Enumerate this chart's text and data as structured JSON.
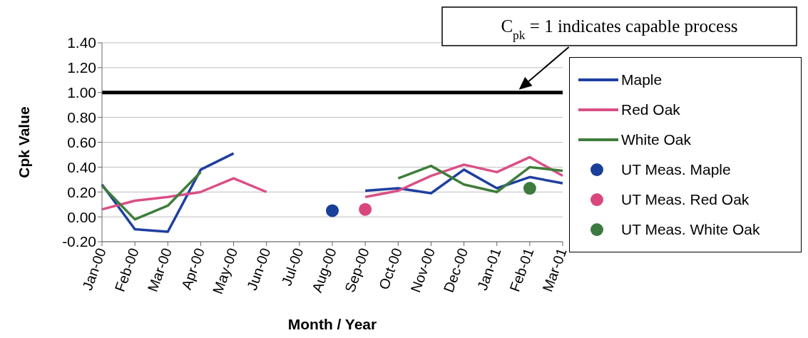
{
  "chart_data": {
    "type": "line",
    "xlabel": "Month / Year",
    "ylabel": "Cpk Value",
    "categories": [
      "Jan-00",
      "Feb-00",
      "Mar-00",
      "Apr-00",
      "May-00",
      "Jun-00",
      "Jul-00",
      "Aug-00",
      "Sep-00",
      "Oct-00",
      "Nov-00",
      "Dec-00",
      "Jan-01",
      "Feb-01",
      "Mar-01"
    ],
    "series": [
      {
        "name": "Maple",
        "color": "#1f3fa0",
        "values": [
          0.26,
          -0.1,
          -0.12,
          0.38,
          0.51,
          null,
          null,
          null,
          0.21,
          0.23,
          0.19,
          0.38,
          0.23,
          0.32,
          0.27
        ]
      },
      {
        "name": "Red Oak",
        "color": "#d94f86",
        "values": [
          0.06,
          0.13,
          0.16,
          0.2,
          0.31,
          0.2,
          null,
          null,
          0.16,
          0.21,
          0.33,
          0.42,
          0.36,
          0.48,
          0.33
        ]
      },
      {
        "name": "White Oak",
        "color": "#3f7d3a",
        "values": [
          0.25,
          -0.02,
          0.09,
          0.36,
          null,
          null,
          null,
          null,
          null,
          0.31,
          0.41,
          0.26,
          0.2,
          0.4,
          0.37
        ]
      },
      {
        "name": "UT Meas. Maple",
        "type": "scatter",
        "color": "#1a3f9a",
        "values": [
          null,
          null,
          null,
          null,
          null,
          null,
          null,
          0.05,
          null,
          null,
          null,
          null,
          null,
          null,
          null
        ]
      },
      {
        "name": "UT Meas. Red Oak",
        "type": "scatter",
        "color": "#d9477e",
        "values": [
          null,
          null,
          null,
          null,
          null,
          null,
          null,
          null,
          0.06,
          null,
          null,
          null,
          null,
          null,
          null
        ]
      },
      {
        "name": "UT Meas. White Oak",
        "type": "scatter",
        "color": "#3c7a40",
        "values": [
          null,
          null,
          null,
          null,
          null,
          null,
          null,
          null,
          null,
          null,
          null,
          null,
          null,
          0.23,
          null
        ]
      }
    ],
    "ylim": [
      -0.2,
      1.4
    ],
    "yticks": [
      {
        "value": -0.2,
        "label": "-0.20"
      },
      {
        "value": 0,
        "label": "0.00"
      },
      {
        "value": 0.2,
        "label": "0.20"
      },
      {
        "value": 0.4,
        "label": "0.40"
      },
      {
        "value": 0.6,
        "label": "0.60"
      },
      {
        "value": 0.8,
        "label": "0.80"
      },
      {
        "value": 1,
        "label": "1.00"
      },
      {
        "value": 1.2,
        "label": "1.20"
      },
      {
        "value": 1.4,
        "label": "1.40"
      }
    ],
    "grid": "y",
    "legend": "right",
    "ref_lines": [
      {
        "axis": "y",
        "value": 1,
        "label": "C$_{pk}$ = 1 indicates capable process",
        "color": "#000000"
      }
    ]
  }
}
